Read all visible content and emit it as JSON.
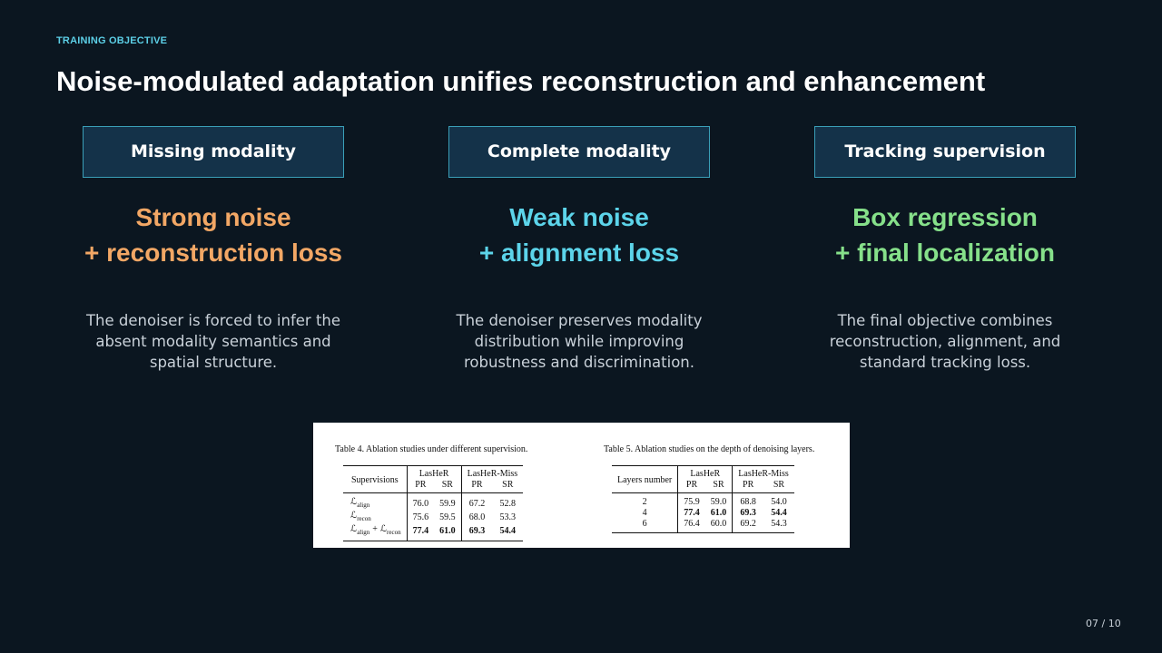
{
  "section_label": "TRAINING OBJECTIVE",
  "title": "Noise-modulated adaptation unifies reconstruction and enhancement",
  "columns": [
    {
      "header": "Missing modality",
      "headline": [
        "Strong noise",
        "+ reconstruction loss"
      ],
      "color": "#f2a765",
      "description": "The denoiser is forced to infer the absent modality semantics and spatial structure."
    },
    {
      "header": "Complete modality",
      "headline": [
        "Weak noise",
        "+ alignment loss"
      ],
      "color": "#5cd4ea",
      "description": "The denoiser preserves modality distribution while improving robustness and discrimination."
    },
    {
      "header": "Tracking supervision",
      "headline": [
        "Box regression",
        "+ final localization"
      ],
      "color": "#86e08a",
      "description": "The final objective combines reconstruction, alignment, and standard tracking loss."
    }
  ],
  "tables": [
    {
      "caption": "Table 4. Ablation studies under different supervision.",
      "row_header": "Supervisions",
      "groups": [
        {
          "name": "LasHeR",
          "metrics": [
            "PR",
            "SR"
          ]
        },
        {
          "name": "LasHeR-Miss",
          "metrics": [
            "PR",
            "SR"
          ]
        }
      ],
      "rows": [
        {
          "label": [
            {
              "text": "ℒ",
              "sub": "align"
            }
          ],
          "cells": [
            "76.0",
            "59.9",
            "67.2",
            "52.8"
          ]
        },
        {
          "label": [
            {
              "text": "ℒ",
              "sub": "recon"
            }
          ],
          "cells": [
            "75.6",
            "59.5",
            "68.0",
            "53.3"
          ]
        },
        {
          "label": [
            {
              "text": "ℒ",
              "sub": "align"
            },
            {
              "text": "+"
            },
            {
              "text": "ℒ",
              "sub": "recon"
            }
          ],
          "cells": [
            "77.4",
            "61.0",
            "69.3",
            "54.4"
          ],
          "bold": true
        }
      ]
    },
    {
      "caption": "Table 5. Ablation studies on the depth of denoising layers.",
      "row_header": "Layers number",
      "groups": [
        {
          "name": "LasHeR",
          "metrics": [
            "PR",
            "SR"
          ]
        },
        {
          "name": "LasHeR-Miss",
          "metrics": [
            "PR",
            "SR"
          ]
        }
      ],
      "rows": [
        {
          "label": [
            {
              "text": "2"
            }
          ],
          "cells": [
            "75.9",
            "59.0",
            "68.8",
            "54.0"
          ]
        },
        {
          "label": [
            {
              "text": "4"
            }
          ],
          "cells": [
            "77.4",
            "61.0",
            "69.3",
            "54.4"
          ],
          "bold": true
        },
        {
          "label": [
            {
              "text": "6"
            }
          ],
          "cells": [
            "76.4",
            "60.0",
            "69.2",
            "54.3"
          ]
        }
      ]
    }
  ],
  "page_number": "07 / 10"
}
